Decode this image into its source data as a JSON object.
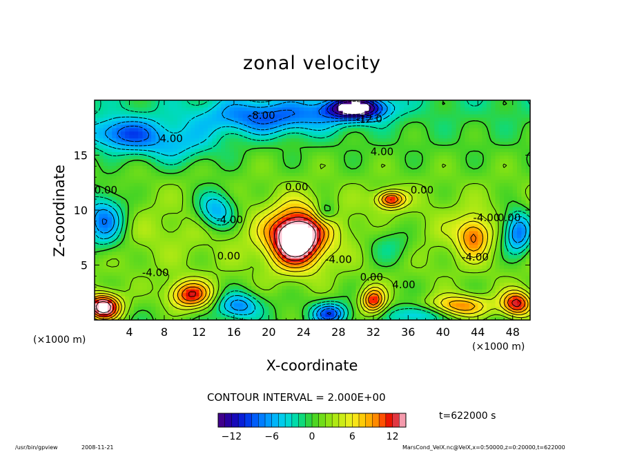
{
  "chart_data": {
    "type": "heatmap",
    "title": "zonal velocity",
    "xlabel": "X-coordinate",
    "ylabel": "Z-coordinate",
    "x_unit": "(×1000 m)",
    "x_unit_right": "(×1000 m)",
    "x_ticks": [
      "4",
      "8",
      "12",
      "16",
      "20",
      "24",
      "28",
      "32",
      "36",
      "40",
      "44",
      "48"
    ],
    "x_tick_values": [
      4,
      8,
      12,
      16,
      20,
      24,
      28,
      32,
      36,
      40,
      44,
      48
    ],
    "y_ticks": [
      "5",
      "10",
      "15"
    ],
    "y_tick_values": [
      5,
      10,
      15
    ],
    "xlim": [
      0,
      50
    ],
    "ylim": [
      0,
      20
    ],
    "contour_interval_text": "CONTOUR INTERVAL = 2.000E+00",
    "contour_labels": [
      {
        "text": "-8.00",
        "x": 19.2,
        "z": 18.3
      },
      {
        "text": "-12.0",
        "x": 31.5,
        "z": 18.0
      },
      {
        "text": "4.00",
        "x": 8.8,
        "z": 16.2
      },
      {
        "text": "4.00",
        "x": 33.0,
        "z": 15.0
      },
      {
        "text": "0.00",
        "x": 1.3,
        "z": 11.5
      },
      {
        "text": "-4.00",
        "x": 15.5,
        "z": 8.8
      },
      {
        "text": "0.00",
        "x": 15.4,
        "z": 5.5
      },
      {
        "text": "-4.00",
        "x": 7.0,
        "z": 4.0
      },
      {
        "text": "0.00",
        "x": 23.2,
        "z": 11.8
      },
      {
        "text": "0.00",
        "x": 37.6,
        "z": 11.5
      },
      {
        "text": "-4.00",
        "x": 28.0,
        "z": 5.2
      },
      {
        "text": "0.00",
        "x": 31.8,
        "z": 3.6
      },
      {
        "text": "4.00",
        "x": 35.5,
        "z": 2.9
      },
      {
        "text": "-4.00",
        "x": 43.7,
        "z": 5.4
      },
      {
        "text": "-4.00",
        "x": 45.0,
        "z": 9.0
      },
      {
        "text": "0.00",
        "x": 47.6,
        "z": 9.0
      }
    ],
    "features": [
      {
        "kind": "max",
        "x": 23.2,
        "z": 7.5,
        "value_range": "> 14"
      },
      {
        "kind": "max",
        "x": 11.0,
        "z": 2.3,
        "value_range": "10 to 12"
      },
      {
        "kind": "max",
        "x": 32.0,
        "z": 1.8,
        "value_range": "10 to 12"
      },
      {
        "kind": "max",
        "x": 34.0,
        "z": 11.0,
        "value_range": "10 to 12"
      },
      {
        "kind": "max",
        "x": 43.5,
        "z": 7.6,
        "value_range": "6 to 10"
      },
      {
        "kind": "max",
        "x": 1.0,
        "z": 1.2,
        "value_range": "> 14"
      },
      {
        "kind": "min",
        "x": 30.0,
        "z": 19.3,
        "value_range": "< -14"
      },
      {
        "kind": "min",
        "x": 14.0,
        "z": 10.0,
        "value_range": "-8 to -6"
      },
      {
        "kind": "min",
        "x": 48.6,
        "z": 8.0,
        "value_range": "-12 to -8"
      },
      {
        "kind": "min",
        "x": 1.0,
        "z": 9.0,
        "value_range": "-12 to -8"
      }
    ],
    "colorbar": {
      "min": -14,
      "max": 14,
      "interval": 1,
      "labels": [
        "−12",
        "−6",
        "0",
        "6",
        "12"
      ],
      "label_values": [
        -12,
        -6,
        0,
        6,
        12
      ]
    },
    "time_text": "t=622000 s"
  },
  "footer": {
    "program": "/usr/bin/gpview",
    "date": "2008-11-21",
    "source": "MarsCond_VelX.nc@VelX,x=0:50000,z=0:20000,t=622000"
  }
}
